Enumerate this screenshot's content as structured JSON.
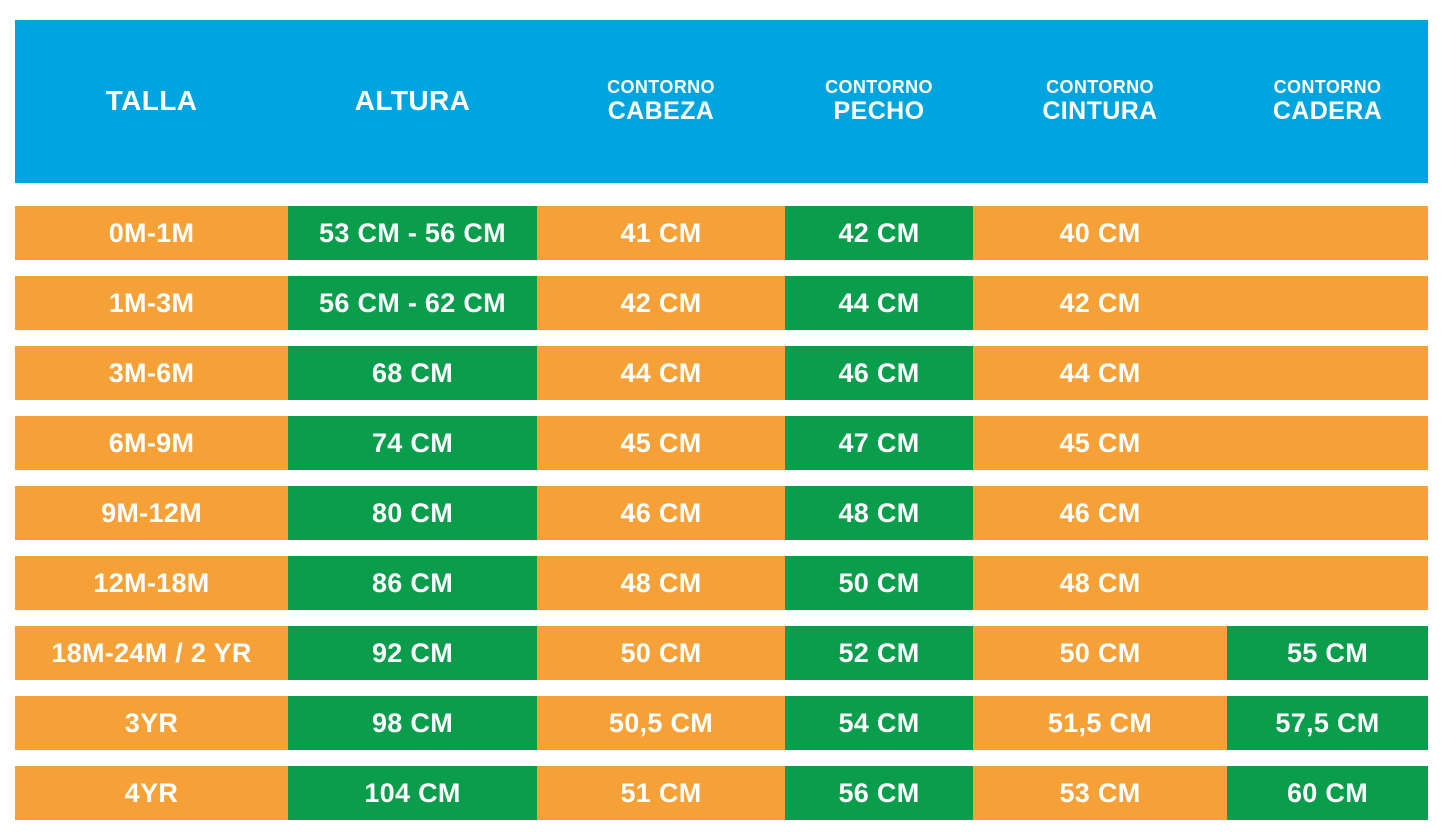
{
  "colors": {
    "header_bg": "#00A5DF",
    "row_bg": "#F6A137",
    "highlight_bg": "#0A9E4C",
    "text": "#FFFFFF",
    "page_bg": "#FFFFFF"
  },
  "header": {
    "cols": [
      {
        "prefix": "",
        "label": "TALLA"
      },
      {
        "prefix": "",
        "label": "ALTURA"
      },
      {
        "prefix": "CONTORNO",
        "label": "CABEZA"
      },
      {
        "prefix": "CONTORNO",
        "label": "PECHO"
      },
      {
        "prefix": "CONTORNO",
        "label": "CINTURA"
      },
      {
        "prefix": "CONTORNO",
        "label": "CADERA"
      }
    ]
  },
  "rows": [
    {
      "talla": "0M-1M",
      "altura": "53 CM - 56 CM",
      "cabeza": "41 CM",
      "pecho": "42 CM",
      "cintura": "40 CM",
      "cadera": ""
    },
    {
      "talla": "1M-3M",
      "altura": "56 CM - 62 CM",
      "cabeza": "42 CM",
      "pecho": "44 CM",
      "cintura": "42 CM",
      "cadera": ""
    },
    {
      "talla": "3M-6M",
      "altura": "68 CM",
      "cabeza": "44 CM",
      "pecho": "46 CM",
      "cintura": "44 CM",
      "cadera": ""
    },
    {
      "talla": "6M-9M",
      "altura": "74 CM",
      "cabeza": "45 CM",
      "pecho": "47 CM",
      "cintura": "45 CM",
      "cadera": ""
    },
    {
      "talla": "9M-12M",
      "altura": "80 CM",
      "cabeza": "46 CM",
      "pecho": "48 CM",
      "cintura": "46 CM",
      "cadera": ""
    },
    {
      "talla": "12M-18M",
      "altura": "86 CM",
      "cabeza": "48 CM",
      "pecho": "50 CM",
      "cintura": "48 CM",
      "cadera": ""
    },
    {
      "talla": "18M-24M / 2 YR",
      "altura": "92 CM",
      "cabeza": "50 CM",
      "pecho": "52 CM",
      "cintura": "50 CM",
      "cadera": "55 CM"
    },
    {
      "talla": "3YR",
      "altura": "98 CM",
      "cabeza": "50,5 CM",
      "pecho": "54 CM",
      "cintura": "51,5 CM",
      "cadera": "57,5 CM"
    },
    {
      "talla": "4YR",
      "altura": "104 CM",
      "cabeza": "51 CM",
      "pecho": "56 CM",
      "cintura": "53 CM",
      "cadera": "60 CM"
    }
  ],
  "chart_data": {
    "type": "table",
    "columns": [
      "TALLA",
      "ALTURA",
      "CONTORNO CABEZA",
      "CONTORNO PECHO",
      "CONTORNO CINTURA",
      "CONTORNO CADERA"
    ],
    "rows": [
      [
        "0M-1M",
        "53 CM - 56 CM",
        "41 CM",
        "42 CM",
        "40 CM",
        ""
      ],
      [
        "1M-3M",
        "56 CM - 62 CM",
        "42 CM",
        "44 CM",
        "42 CM",
        ""
      ],
      [
        "3M-6M",
        "68 CM",
        "44 CM",
        "46 CM",
        "44 CM",
        ""
      ],
      [
        "6M-9M",
        "74 CM",
        "45 CM",
        "47 CM",
        "45 CM",
        ""
      ],
      [
        "9M-12M",
        "80 CM",
        "46 CM",
        "48 CM",
        "46 CM",
        ""
      ],
      [
        "12M-18M",
        "86 CM",
        "48 CM",
        "50 CM",
        "48 CM",
        ""
      ],
      [
        "18M-24M / 2 YR",
        "92 CM",
        "50 CM",
        "52 CM",
        "50 CM",
        "55 CM"
      ],
      [
        "3YR",
        "98 CM",
        "50,5 CM",
        "54 CM",
        "51,5 CM",
        "57,5 CM"
      ],
      [
        "4YR",
        "104 CM",
        "51 CM",
        "56 CM",
        "53 CM",
        "60 CM"
      ]
    ],
    "layout_hints": {
      "header_style": "blue band",
      "row_style": "orange bars with white gaps",
      "green_highlight_columns": [
        "ALTURA",
        "CONTORNO PECHO"
      ],
      "green_highlight_extra_cells": "CONTORNO CADERA for rows 18M-24M / 2 YR, 3YR, 4YR"
    }
  }
}
